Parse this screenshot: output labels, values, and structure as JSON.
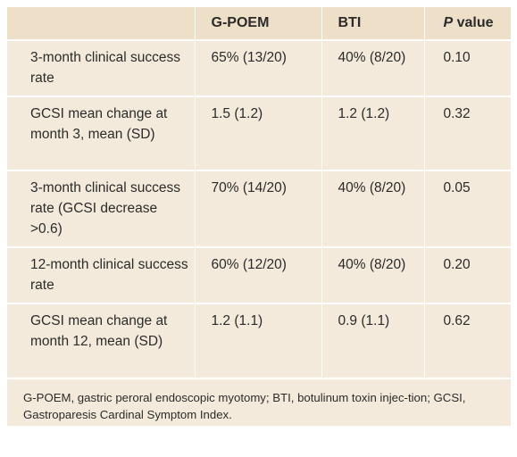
{
  "table": {
    "headers": [
      "",
      "G-POEM",
      "BTI",
      "value"
    ],
    "p_header_prefix": "P",
    "rows": [
      {
        "label": "3-month clinical success rate",
        "gpoem": "65% (13/20)",
        "bti": "40% (8/20)",
        "p": "0.10"
      },
      {
        "label": "GCSI mean change at month 3, mean (SD)",
        "gpoem": "1.5 (1.2)",
        "bti": "1.2 (1.2)",
        "p": "0.32"
      },
      {
        "label": "3-month clinical success rate (GCSI decrease >0.6)",
        "gpoem": "70% (14/20)",
        "bti": "40% (8/20)",
        "p": "0.05"
      },
      {
        "label": "12-month clinical success rate",
        "gpoem": "60% (12/20)",
        "bti": "40% (8/20)",
        "p": "0.20"
      },
      {
        "label": "GCSI mean change at month 12, mean (SD)",
        "gpoem": "1.2 (1.1)",
        "bti": "0.9 (1.1)",
        "p": "0.62"
      }
    ],
    "footnote": "G-POEM, gastric peroral endoscopic myotomy; BTI, botulinum toxin injec-tion; GCSI, Gastroparesis Cardinal Symptom Index."
  },
  "colors": {
    "header_bg": "#eedfc8",
    "body_bg": "#f3eadb",
    "divider": "#ffffff"
  }
}
